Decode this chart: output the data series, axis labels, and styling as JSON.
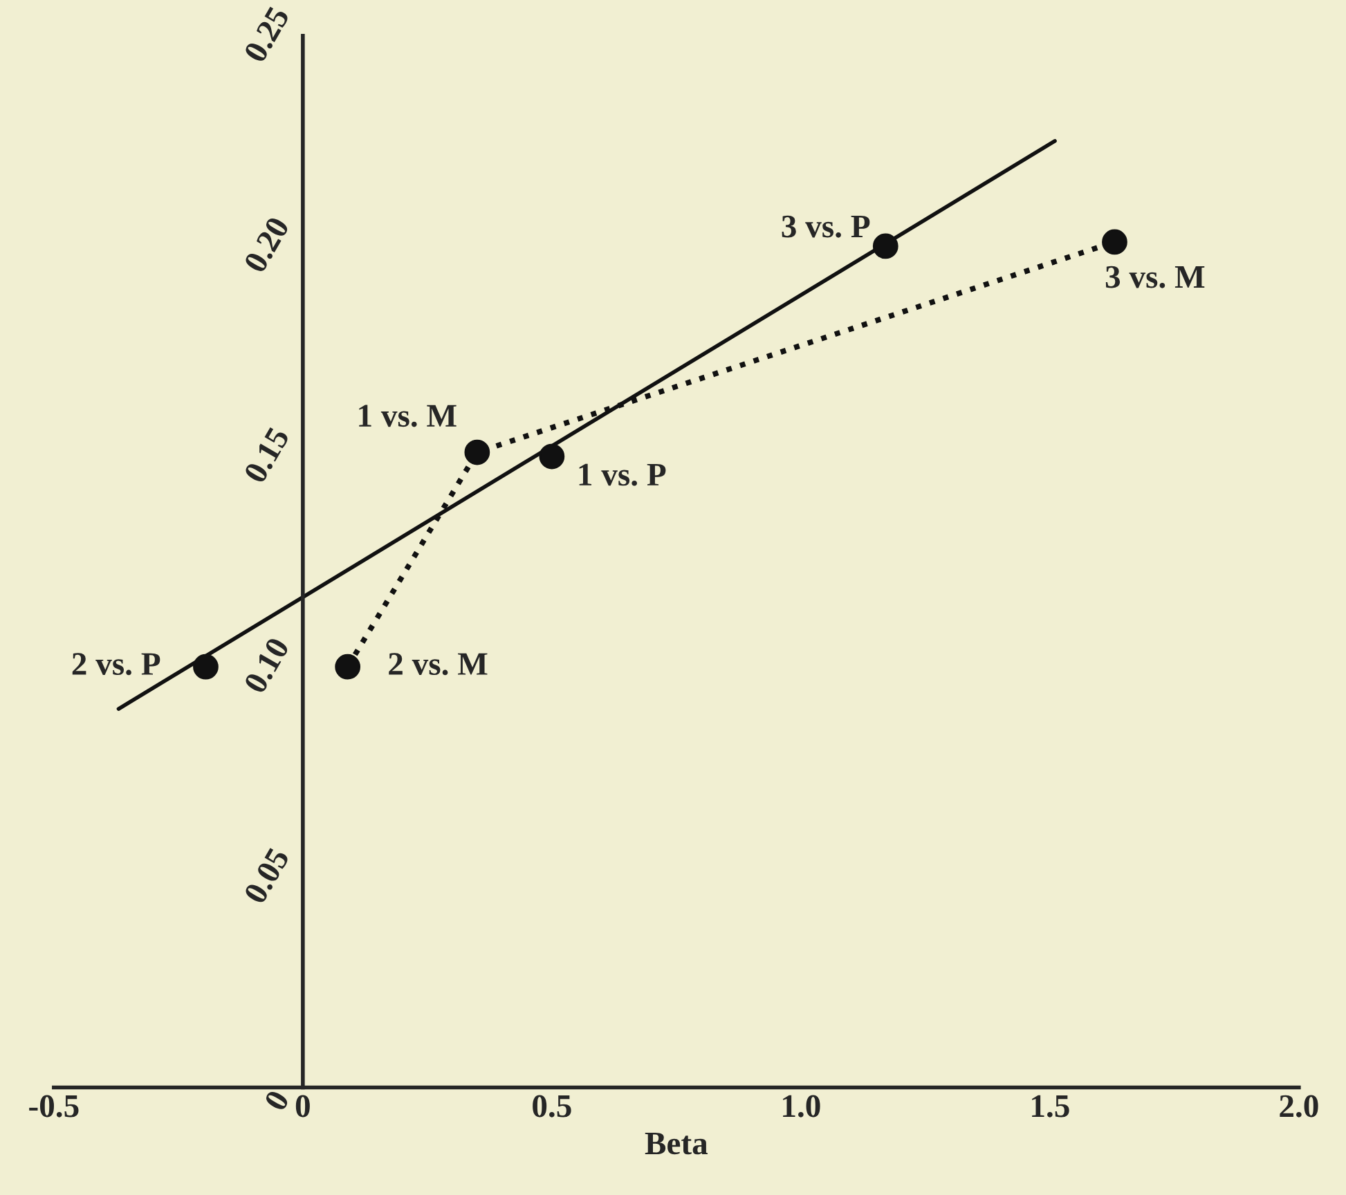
{
  "chart_data": {
    "type": "scatter",
    "xlabel": "Beta",
    "xlim": [
      -0.5,
      2.0
    ],
    "ylim": [
      0,
      0.25
    ],
    "xticks": [
      -0.5,
      0,
      0.5,
      {
        "value": 1,
        "label": "1.0"
      },
      1.5,
      {
        "value": 2,
        "label": "2.0"
      }
    ],
    "yticks": [
      {
        "value": 0,
        "label": "0"
      },
      0.05,
      {
        "value": 0.1,
        "label": "0.10"
      },
      0.15,
      {
        "value": 0.2,
        "label": "0.20"
      },
      0.25
    ],
    "grid": false,
    "legend": false,
    "series": [
      {
        "type": "line",
        "line_style": "solid",
        "marker": "none",
        "color": "#111111",
        "x": [
          -0.37,
          1.51
        ],
        "values": [
          0.09,
          0.225
        ]
      },
      {
        "type": "line",
        "line_style": "dotted",
        "marker": "none",
        "color": "#111111",
        "x": [
          0.09,
          0.35,
          1.63
        ],
        "values": [
          0.1,
          0.151,
          0.201
        ]
      },
      {
        "marker": "circle",
        "color": "#111111",
        "x": [
          -0.195,
          0.09,
          0.35,
          0.5,
          1.17,
          1.63
        ],
        "values": [
          0.1,
          0.1,
          0.151,
          0.15,
          0.2,
          0.201
        ]
      }
    ],
    "annotations": [
      {
        "text": "2 vs. P",
        "x": -0.195,
        "y": 0.1
      },
      {
        "text": "2 vs. M",
        "x": 0.09,
        "y": 0.1
      },
      {
        "text": "1 vs. M",
        "x": 0.35,
        "y": 0.151
      },
      {
        "text": "1 vs. P",
        "x": 0.5,
        "y": 0.15
      },
      {
        "text": "3 vs. P",
        "x": 1.17,
        "y": 0.2
      },
      {
        "text": "3 vs. M",
        "x": 1.63,
        "y": 0.201
      }
    ]
  }
}
